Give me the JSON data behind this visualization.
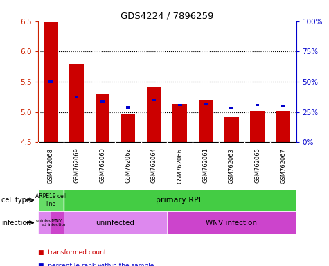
{
  "title": "GDS4224 / 7896259",
  "samples": [
    "GSM762068",
    "GSM762069",
    "GSM762060",
    "GSM762062",
    "GSM762064",
    "GSM762066",
    "GSM762061",
    "GSM762063",
    "GSM762065",
    "GSM762067"
  ],
  "red_values": [
    6.48,
    5.8,
    5.3,
    4.97,
    5.42,
    5.13,
    5.2,
    4.92,
    5.02,
    5.02
  ],
  "blue_values": [
    5.5,
    5.25,
    5.18,
    5.08,
    5.2,
    5.12,
    5.13,
    5.07,
    5.12,
    5.1
  ],
  "y_min": 4.5,
  "y_max": 6.5,
  "y_ticks": [
    4.5,
    5.0,
    5.5,
    6.0,
    6.5
  ],
  "right_y_ticks": [
    0,
    25,
    50,
    75,
    100
  ],
  "right_y_labels": [
    "0%",
    "25%",
    "50%",
    "75%",
    "100%"
  ],
  "bar_bottom": 4.5,
  "red_color": "#cc0000",
  "blue_color": "#0000cc",
  "grid_color": "#333333",
  "bg_gray": "#cccccc",
  "cell_type_green_light": "#66dd66",
  "cell_type_green": "#44cc44",
  "infection_light": "#dd88ee",
  "infection_dark": "#cc44cc",
  "legend_items": [
    {
      "color": "#cc0000",
      "label": "transformed count"
    },
    {
      "color": "#0000cc",
      "label": "percentile rank within the sample"
    }
  ],
  "row_label_cell_type": "cell type",
  "row_label_infection": "infection",
  "tick_label_color": "#cc2200",
  "right_tick_color": "#0000cc"
}
